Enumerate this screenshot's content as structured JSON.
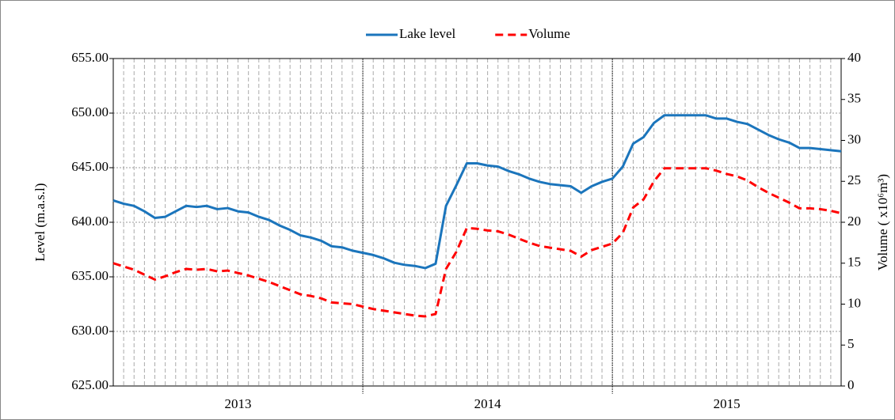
{
  "chart_data": {
    "type": "line",
    "y_label": "Level (m.a.s.l)",
    "y2_label": "Volume ( x10⁶m³)",
    "categories": [
      null,
      null,
      null,
      null,
      null,
      null,
      null,
      null,
      null,
      null,
      null,
      null,
      null,
      null,
      null,
      null,
      null,
      null,
      null,
      null,
      null,
      null,
      null,
      null,
      null,
      null,
      null,
      null,
      null,
      null,
      null,
      null,
      null,
      null,
      null,
      null,
      null,
      null,
      null,
      null,
      null,
      null,
      null,
      null,
      null,
      null,
      null,
      null,
      null,
      null,
      null,
      null,
      null,
      null,
      null,
      null,
      null,
      null,
      null,
      null,
      null,
      null,
      null,
      null,
      null,
      null,
      null,
      null,
      null,
      null,
      null
    ],
    "groups": [
      {
        "label": "2013",
        "count": 24
      },
      {
        "label": "2014",
        "count": 24
      },
      {
        "label": "2015",
        "count": 23
      }
    ],
    "series": [
      {
        "name": "Lake level",
        "color": "#1b75bc",
        "axis": "y",
        "dash": "solid",
        "values": [
          642.0,
          641.7,
          641.5,
          641.0,
          640.4,
          640.5,
          641.0,
          641.5,
          641.4,
          641.5,
          641.2,
          641.3,
          641.0,
          640.9,
          640.5,
          640.2,
          639.7,
          639.3,
          638.8,
          638.6,
          638.3,
          637.8,
          637.7,
          637.4,
          637.2,
          637.0,
          636.7,
          636.3,
          636.1,
          636.0,
          635.8,
          636.2,
          641.5,
          643.4,
          645.4,
          645.4,
          645.2,
          645.1,
          644.7,
          644.4,
          644.0,
          643.7,
          643.5,
          643.4,
          643.3,
          642.7,
          643.3,
          643.7,
          644.0,
          645.1,
          647.2,
          647.8,
          649.1,
          649.8,
          649.8,
          649.8,
          649.8,
          649.8,
          649.5,
          649.5,
          649.2,
          649.0,
          648.5,
          648.0,
          647.6,
          647.3,
          646.8,
          646.8,
          646.7,
          646.6,
          646.5
        ]
      },
      {
        "name": "Volume",
        "color": "#ff0000",
        "axis": "y2",
        "dash": "dashed",
        "values": [
          15.0,
          14.6,
          14.2,
          13.6,
          13.0,
          13.4,
          13.9,
          14.3,
          14.2,
          14.3,
          14.0,
          14.1,
          13.8,
          13.5,
          13.1,
          12.7,
          12.2,
          11.7,
          11.2,
          11.0,
          10.7,
          10.2,
          10.1,
          10.0,
          9.7,
          9.4,
          9.2,
          9.0,
          8.8,
          8.6,
          8.5,
          8.8,
          14.3,
          16.4,
          19.3,
          19.2,
          19.0,
          18.9,
          18.5,
          18.0,
          17.5,
          17.1,
          16.9,
          16.7,
          16.5,
          15.8,
          16.6,
          17.0,
          17.4,
          18.7,
          21.8,
          22.8,
          25.0,
          26.6,
          26.6,
          26.6,
          26.6,
          26.6,
          26.3,
          25.9,
          25.6,
          25.1,
          24.3,
          23.6,
          23.0,
          22.4,
          21.7,
          21.7,
          21.6,
          21.4,
          21.1
        ]
      }
    ],
    "ylim": [
      625,
      655
    ],
    "yticks": [
      {
        "value": 625,
        "label": "625.00"
      },
      {
        "value": 630,
        "label": "630.00"
      },
      {
        "value": 635,
        "label": "635.00"
      },
      {
        "value": 640,
        "label": "640.00"
      },
      {
        "value": 645,
        "label": "645.00"
      },
      {
        "value": 650,
        "label": "650.00"
      },
      {
        "value": 655,
        "label": "655.00"
      }
    ],
    "y2lim": [
      0,
      40
    ],
    "y2ticks": [
      0,
      5,
      10,
      15,
      20,
      25,
      30,
      35,
      40
    ],
    "grid": true,
    "legend": "top"
  }
}
